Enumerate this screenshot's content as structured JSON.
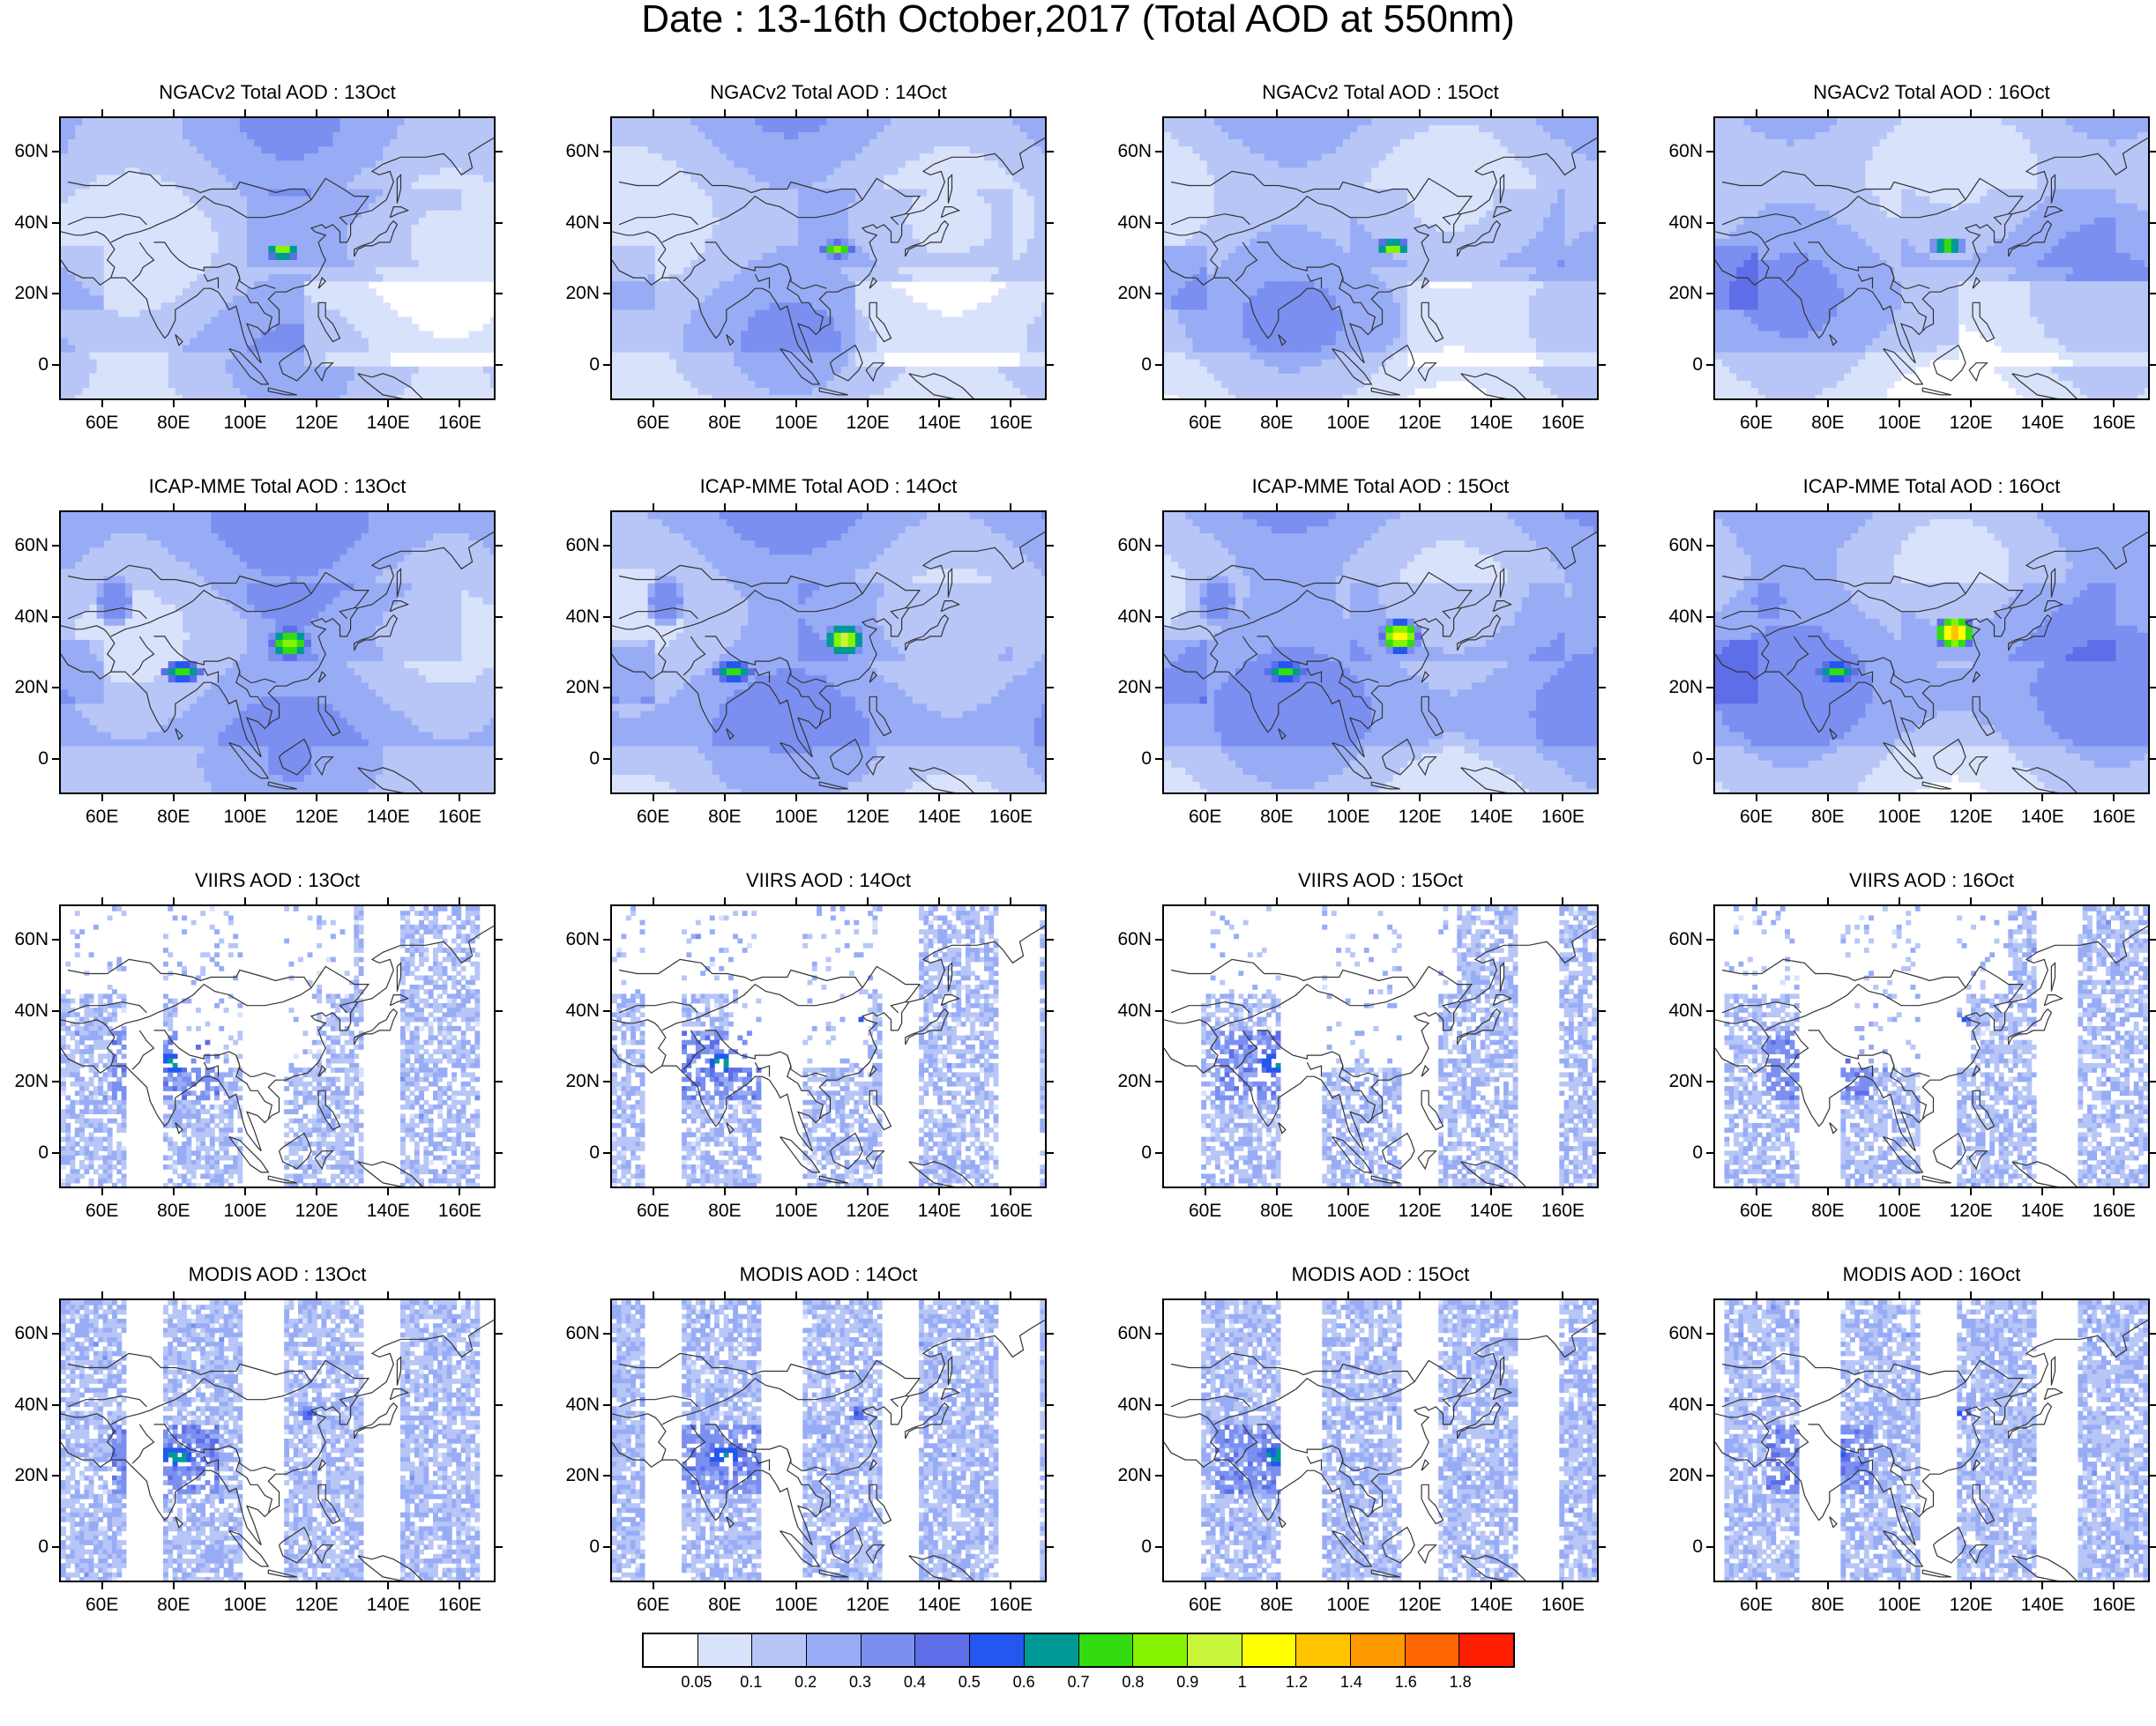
{
  "title": "Date : 13-16th October,2017 (Total AOD at 550nm)",
  "rows": [
    {
      "kind": "model",
      "panels": [
        "NGACv2 Total AOD : 13Oct",
        "NGACv2 Total AOD : 14Oct",
        "NGACv2 Total AOD : 15Oct",
        "NGACv2 Total AOD : 16Oct"
      ]
    },
    {
      "kind": "ensemble",
      "panels": [
        "ICAP-MME Total AOD : 13Oct",
        "ICAP-MME Total AOD : 14Oct",
        "ICAP-MME Total AOD : 15Oct",
        "ICAP-MME Total AOD : 16Oct"
      ]
    },
    {
      "kind": "satellite",
      "panels": [
        "VIIRS AOD : 13Oct",
        "VIIRS AOD : 14Oct",
        "VIIRS AOD : 15Oct",
        "VIIRS AOD : 16Oct"
      ]
    },
    {
      "kind": "satellite",
      "panels": [
        "MODIS AOD : 13Oct",
        "MODIS AOD : 14Oct",
        "MODIS AOD : 15Oct",
        "MODIS AOD : 16Oct"
      ]
    }
  ],
  "lat_labels": [
    "60N",
    "40N",
    "20N",
    "0"
  ],
  "lat_values": [
    60,
    40,
    20,
    0
  ],
  "lon_labels": [
    "60E",
    "80E",
    "100E",
    "120E",
    "140E",
    "160E"
  ],
  "lon_values": [
    60,
    80,
    100,
    120,
    140,
    160
  ],
  "map_extent": {
    "lon": [
      48,
      170
    ],
    "lat": [
      -10,
      70
    ]
  },
  "colorbar": {
    "levels": [
      "0.05",
      "0.1",
      "0.2",
      "0.3",
      "0.4",
      "0.5",
      "0.6",
      "0.7",
      "0.8",
      "0.9",
      "1",
      "1.2",
      "1.4",
      "1.6",
      "1.8"
    ],
    "colors": [
      "#ffffff",
      "#d9e2fb",
      "#b7c6f7",
      "#98acf6",
      "#7a8ff0",
      "#5e6ee8",
      "#2357f0",
      "#009a96",
      "#33dc11",
      "#86f400",
      "#c9f53a",
      "#ffff00",
      "#ffc300",
      "#ff9900",
      "#ff6600",
      "#ff1e00"
    ]
  }
}
